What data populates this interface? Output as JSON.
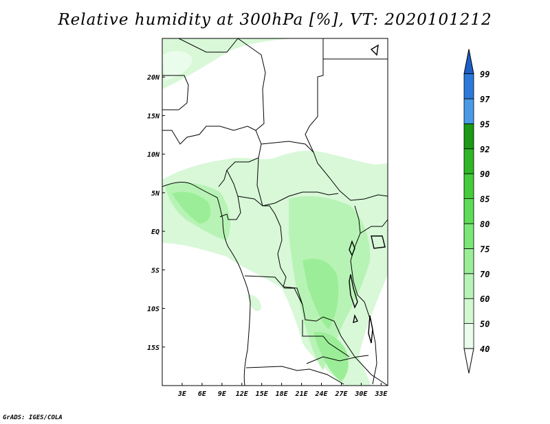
{
  "title": "Relative humidity at 300hPa [%], VT: 2020101212",
  "credit": "GrADS: IGES/COLA",
  "map": {
    "lon_range": [
      0,
      34
    ],
    "lat_range": [
      -20,
      25
    ],
    "x_ticks": [
      {
        "value": 3,
        "label": "3E"
      },
      {
        "value": 6,
        "label": "6E"
      },
      {
        "value": 9,
        "label": "9E"
      },
      {
        "value": 12,
        "label": "12E"
      },
      {
        "value": 15,
        "label": "15E"
      },
      {
        "value": 18,
        "label": "18E"
      },
      {
        "value": 21,
        "label": "21E"
      },
      {
        "value": 24,
        "label": "24E"
      },
      {
        "value": 27,
        "label": "27E"
      },
      {
        "value": 30,
        "label": "30E"
      },
      {
        "value": 33,
        "label": "33E"
      }
    ],
    "y_ticks": [
      {
        "value": 20,
        "label": "20N"
      },
      {
        "value": 15,
        "label": "15N"
      },
      {
        "value": 10,
        "label": "10N"
      },
      {
        "value": 5,
        "label": "5N"
      },
      {
        "value": 0,
        "label": "EQ"
      },
      {
        "value": -5,
        "label": "5S"
      },
      {
        "value": -10,
        "label": "10S"
      },
      {
        "value": -15,
        "label": "15S"
      }
    ]
  },
  "colorbar": {
    "levels": [
      {
        "label": "40",
        "color": "#ffffff"
      },
      {
        "label": "50",
        "color": "#eafceb"
      },
      {
        "label": "60",
        "color": "#d2f8d2"
      },
      {
        "label": "70",
        "color": "#b8f3b6"
      },
      {
        "label": "75",
        "color": "#9bee97"
      },
      {
        "label": "80",
        "color": "#7be776"
      },
      {
        "label": "85",
        "color": "#5edc57"
      },
      {
        "label": "90",
        "color": "#45cc3b"
      },
      {
        "label": "92",
        "color": "#2fb626"
      },
      {
        "label": "95",
        "color": "#1a9a15"
      },
      {
        "label": "97",
        "color": "#4a9be7"
      },
      {
        "label": "99",
        "color": "#2c79da"
      }
    ],
    "top_color": "#1d5fc9"
  }
}
